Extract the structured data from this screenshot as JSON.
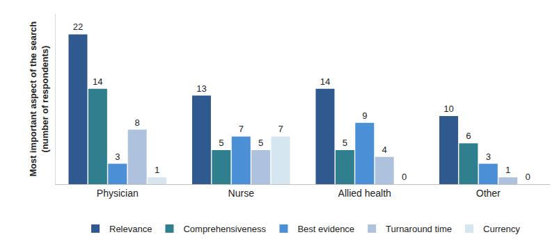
{
  "chart_data": {
    "type": "bar",
    "y_label": "Most important aspect of the search\n(number of respondents)",
    "categories": [
      "Physician",
      "Nurse",
      "Allied health",
      "Other"
    ],
    "series": [
      {
        "name": "Relevance",
        "color": "#30598f",
        "values": [
          22,
          13,
          14,
          10
        ]
      },
      {
        "name": "Comprehensiveness",
        "color": "#2f7f8e",
        "values": [
          14,
          5,
          5,
          6
        ]
      },
      {
        "name": "Best evidence",
        "color": "#4b8fd6",
        "values": [
          3,
          7,
          9,
          3
        ]
      },
      {
        "name": "Turnaround time",
        "color": "#aec2dd",
        "values": [
          8,
          5,
          4,
          1
        ]
      },
      {
        "name": "Currency",
        "color": "#d5e6f1",
        "values": [
          1,
          7,
          0,
          0
        ]
      }
    ],
    "ylim": [
      0,
      25
    ],
    "grid": false,
    "legend": "bottom",
    "data_labels": true,
    "tick_labels": "x"
  }
}
